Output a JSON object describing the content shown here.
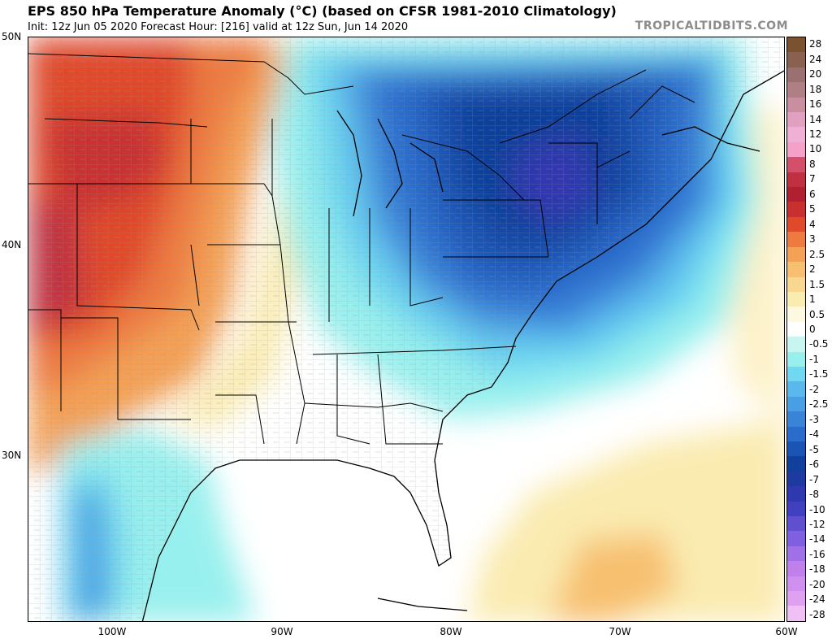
{
  "header": {
    "title": "EPS 850 hPa Temperature Anomaly (°C) (based on CFSR 1981-2010 Climatology)",
    "subtitle": "Init: 12z Jun 05 2020   Forecast Hour: [216]   valid at 12z Sun, Jun 14 2020",
    "brand": "TROPICALTIDBITS.COM"
  },
  "axes": {
    "lat_labels": [
      "50N",
      "40N",
      "30N"
    ],
    "lon_labels": [
      "100W",
      "90W",
      "80W",
      "70W",
      "60W"
    ]
  },
  "colorbar": {
    "labels": [
      "28",
      "24",
      "20",
      "18",
      "16",
      "14",
      "12",
      "10",
      "8",
      "7",
      "6",
      "5",
      "4",
      "3",
      "2.5",
      "2",
      "1.5",
      "1",
      "0.5",
      "0",
      "-0.5",
      "-1",
      "-1.5",
      "-2",
      "-2.5",
      "-3",
      "-4",
      "-5",
      "-6",
      "-7",
      "-8",
      "-10",
      "-12",
      "-14",
      "-16",
      "-18",
      "-20",
      "-24",
      "-28"
    ],
    "colors": [
      "#7a5230",
      "#8a6050",
      "#9a7070",
      "#b07f85",
      "#c98fa0",
      "#e2a0c0",
      "#f0b0d5",
      "#f5a0c8",
      "#d4506a",
      "#c03040",
      "#b02030",
      "#c83030",
      "#e04a2a",
      "#ee7a40",
      "#f4a055",
      "#f7c070",
      "#f8d890",
      "#faebb0",
      "#fdf8e0",
      "#ffffff",
      "#c8f5f0",
      "#98f0ee",
      "#70d8f0",
      "#5ab8ec",
      "#4a9ee4",
      "#3a84d8",
      "#2a6ccc",
      "#1a54b4",
      "#10409c",
      "#1c3aa0",
      "#3038b0",
      "#4040c0",
      "#6050d0",
      "#8060e0",
      "#a070e8",
      "#c080ec",
      "#d090f0",
      "#e0a0f0",
      "#f0c0f4"
    ]
  },
  "map": {
    "land_fill": "#fafaf6",
    "ocean_fill": "#ffffff",
    "border_color": "#000000",
    "county_color": "#8a8a8a"
  }
}
